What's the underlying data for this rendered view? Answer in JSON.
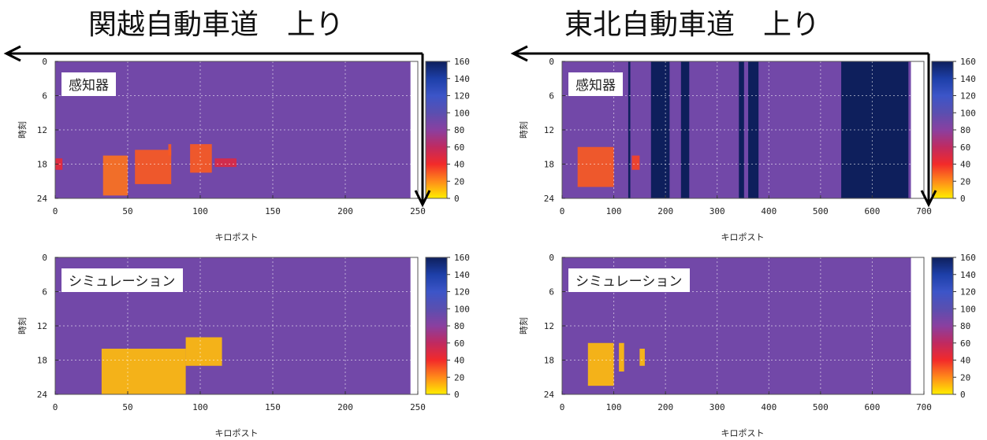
{
  "titles": [
    {
      "text": "関越自動車道　上り"
    },
    {
      "text": "東北自動車道　上り"
    }
  ],
  "colorbar": {
    "ticks": [
      160,
      140,
      120,
      100,
      80,
      60,
      40,
      20,
      0
    ],
    "stops": [
      "#0e1f5c",
      "#1d3fa8",
      "#3c55c8",
      "#5a4fb0",
      "#8a40a0",
      "#c02a60",
      "#f22a2a",
      "#ff8a1a",
      "#ffee00"
    ]
  },
  "chart_data": [
    {
      "type": "heatmap",
      "panel": "kanetsu-sensor",
      "label": "感知器",
      "xlabel": "キロポスト",
      "ylabel": "時刻",
      "xlim": [
        0,
        250
      ],
      "ylim": [
        24,
        0
      ],
      "data_xmax": 245,
      "xticks": [
        0,
        50,
        100,
        150,
        200,
        250
      ],
      "yticks": [
        0,
        6,
        12,
        18,
        24
      ],
      "clim": [
        0,
        160
      ],
      "background_value": 90,
      "congestion": [
        {
          "km": [
            33,
            50
          ],
          "hours": [
            16.5,
            23.5
          ],
          "value": 25
        },
        {
          "km": [
            55,
            80
          ],
          "hours": [
            15.5,
            21.5
          ],
          "value": 30
        },
        {
          "km": [
            78,
            80
          ],
          "hours": [
            14.5,
            16.5
          ],
          "value": 30
        },
        {
          "km": [
            93,
            108
          ],
          "hours": [
            14.5,
            19.5
          ],
          "value": 30
        },
        {
          "km": [
            0,
            5
          ],
          "hours": [
            17,
            19
          ],
          "value": 45
        },
        {
          "km": [
            110,
            125
          ],
          "hours": [
            17,
            18.5
          ],
          "value": 50
        }
      ],
      "grid": true,
      "arrow": true
    },
    {
      "type": "heatmap",
      "panel": "kanetsu-simulation",
      "label": "シミュレーション",
      "xlabel": "キロポスト",
      "ylabel": "時刻",
      "xlim": [
        0,
        250
      ],
      "ylim": [
        24,
        0
      ],
      "data_xmax": 245,
      "xticks": [
        0,
        50,
        100,
        150,
        200,
        250
      ],
      "yticks": [
        0,
        6,
        12,
        18,
        24
      ],
      "clim": [
        0,
        160
      ],
      "background_value": 90,
      "congestion": [
        {
          "km": [
            32,
            90
          ],
          "hours": [
            16,
            24
          ],
          "value": 10
        },
        {
          "km": [
            90,
            115
          ],
          "hours": [
            14,
            19
          ],
          "value": 10
        }
      ],
      "grid": true,
      "arrow": false
    },
    {
      "type": "heatmap",
      "panel": "tohoku-sensor",
      "label": "感知器",
      "xlabel": "キロポスト",
      "ylabel": "時刻",
      "xlim": [
        0,
        700
      ],
      "ylim": [
        24,
        0
      ],
      "data_xmax": 675,
      "xticks": [
        0,
        100,
        200,
        300,
        400,
        500,
        600,
        700
      ],
      "yticks": [
        0,
        6,
        12,
        18,
        24
      ],
      "clim": [
        0,
        160
      ],
      "background_value": 90,
      "missing_bands_km": [
        [
          128,
          132
        ],
        [
          172,
          208
        ],
        [
          230,
          246
        ],
        [
          342,
          352
        ],
        [
          360,
          380
        ],
        [
          540,
          670
        ]
      ],
      "congestion": [
        {
          "km": [
            30,
            100
          ],
          "hours": [
            15,
            22
          ],
          "value": 30
        },
        {
          "km": [
            135,
            150
          ],
          "hours": [
            16.5,
            19
          ],
          "value": 35
        }
      ],
      "grid": true,
      "arrow": true
    },
    {
      "type": "heatmap",
      "panel": "tohoku-simulation",
      "label": "シミュレーション",
      "xlabel": "キロポスト",
      "ylabel": "時刻",
      "xlim": [
        0,
        700
      ],
      "ylim": [
        24,
        0
      ],
      "data_xmax": 675,
      "xticks": [
        0,
        100,
        200,
        300,
        400,
        500,
        600,
        700
      ],
      "yticks": [
        0,
        6,
        12,
        18,
        24
      ],
      "clim": [
        0,
        160
      ],
      "background_value": 90,
      "congestion": [
        {
          "km": [
            50,
            100
          ],
          "hours": [
            15,
            22.5
          ],
          "value": 10
        },
        {
          "km": [
            110,
            120
          ],
          "hours": [
            15,
            20
          ],
          "value": 10
        },
        {
          "km": [
            150,
            160
          ],
          "hours": [
            16,
            19
          ],
          "value": 10
        }
      ],
      "grid": true,
      "arrow": false
    }
  ]
}
